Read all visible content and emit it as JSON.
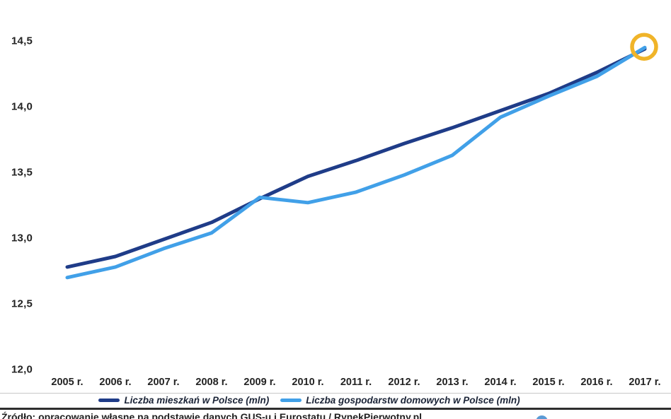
{
  "chart_data": {
    "type": "line",
    "categories": [
      "2005 r.",
      "2006 r.",
      "2007 r.",
      "2008 r.",
      "2009 r.",
      "2010 r.",
      "2011 r.",
      "2012 r.",
      "2013 r.",
      "2014 r.",
      "2015 r.",
      "2016 r.",
      "2017 r."
    ],
    "series": [
      {
        "name": "Liczba mieszkań w Polsce (mln)",
        "color": "#1f3c88",
        "values": [
          12.78,
          12.86,
          12.99,
          13.12,
          13.3,
          13.47,
          13.59,
          13.72,
          13.84,
          13.97,
          14.1,
          14.26,
          14.44
        ]
      },
      {
        "name": "Liczba gospodarstw domowych w Polsce (mln)",
        "color": "#41a0e8",
        "values": [
          12.7,
          12.78,
          12.92,
          13.04,
          13.31,
          13.27,
          13.35,
          13.48,
          13.63,
          13.92,
          14.08,
          14.23,
          14.45
        ]
      }
    ],
    "title": "",
    "xlabel": "",
    "ylabel": "",
    "ylim": [
      12.0,
      14.5
    ],
    "y_ticks": [
      12.0,
      12.5,
      13.0,
      13.5,
      14.0,
      14.5
    ],
    "y_tick_labels": [
      "12,0",
      "12,5",
      "13,0",
      "13,5",
      "14,0",
      "14,5"
    ],
    "grid": false,
    "legend_position": "bottom",
    "annotation": {
      "type": "circle-highlight",
      "target": "last-point",
      "color": "#f0b429"
    }
  },
  "footer": {
    "source_text": "Źródło: opracowanie własne na podstawie danych GUS-u i Eurostatu / RynekPierwotny.pl"
  }
}
